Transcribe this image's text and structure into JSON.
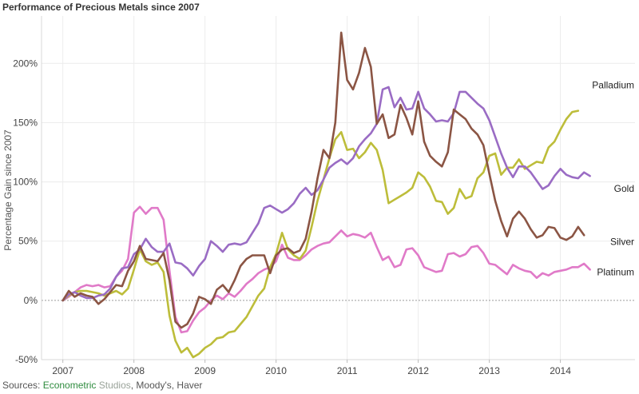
{
  "title": "Performance of Precious Metals since 2007",
  "sources": {
    "prefix": "Sources: ",
    "part1": "Econometric",
    "part2": " Studios",
    "part3": ", Moody's, Haver"
  },
  "chart_data": {
    "type": "line",
    "title": "Performance of Precious Metals since 2007",
    "ylabel": "Percentage Gain since 2007",
    "xlabel": "",
    "xlim": [
      2006.7,
      2015.05
    ],
    "ylim": [
      -50,
      240
    ],
    "x_ticks": [
      2007,
      2008,
      2009,
      2010,
      2011,
      2012,
      2013,
      2014
    ],
    "x_tick_labels": [
      "2007",
      "2008",
      "2009",
      "2010",
      "2011",
      "2012",
      "2013",
      "2014"
    ],
    "y_ticks": [
      -50,
      0,
      50,
      100,
      150,
      200
    ],
    "y_tick_labels": [
      "-50%",
      "0%",
      "50%",
      "100%",
      "150%",
      "200%"
    ],
    "grid": true,
    "zero_line": "dotted",
    "x_start": 2007.0,
    "x_step": 0.0833333,
    "series": [
      {
        "name": "Palladium",
        "color": "#bdbd3a",
        "values": [
          0,
          4,
          7,
          8,
          8,
          7,
          6,
          4,
          6,
          8,
          5,
          10,
          26,
          43,
          33,
          30,
          32,
          24,
          -13,
          -34,
          -44,
          -40,
          -48,
          -45,
          -40,
          -37,
          -32,
          -31,
          -27,
          -26,
          -20,
          -14,
          -5,
          4,
          10,
          28,
          39,
          57,
          43,
          38,
          35,
          42,
          62,
          84,
          102,
          120,
          136,
          142,
          127,
          128,
          120,
          125,
          133,
          127,
          110,
          82,
          85,
          88,
          91,
          95,
          108,
          104,
          96,
          84,
          83,
          73,
          78,
          94,
          86,
          88,
          103,
          108,
          122,
          124,
          106,
          112,
          112,
          119,
          111,
          114,
          117,
          116,
          129,
          134,
          144,
          153,
          159,
          160
        ]
      },
      {
        "name": "Gold",
        "color": "#9a6cc4",
        "values": [
          0,
          5,
          7,
          4,
          2,
          2,
          4,
          5,
          10,
          20,
          27,
          28,
          39,
          43,
          52,
          45,
          41,
          41,
          48,
          32,
          31,
          27,
          21,
          29,
          35,
          50,
          46,
          41,
          47,
          48,
          47,
          49,
          57,
          65,
          78,
          80,
          77,
          74,
          77,
          82,
          90,
          95,
          89,
          93,
          102,
          112,
          116,
          119,
          115,
          120,
          130,
          136,
          141,
          149,
          178,
          180,
          163,
          171,
          161,
          162,
          176,
          162,
          157,
          151,
          152,
          151,
          158,
          176,
          176,
          171,
          166,
          162,
          152,
          138,
          124,
          112,
          104,
          113,
          113,
          108,
          101,
          94,
          97,
          105,
          111,
          106,
          104,
          103,
          108,
          105
        ]
      },
      {
        "name": "Silver",
        "color": "#8b5544",
        "values": [
          0,
          8,
          3,
          6,
          4,
          3,
          -3,
          1,
          7,
          13,
          12,
          25,
          33,
          46,
          35,
          34,
          33,
          40,
          17,
          -18,
          -23,
          -20,
          -11,
          3,
          1,
          -3,
          9,
          13,
          7,
          17,
          29,
          35,
          38,
          38,
          38,
          23,
          38,
          43,
          44,
          40,
          42,
          52,
          75,
          103,
          127,
          120,
          150,
          226,
          186,
          178,
          192,
          213,
          197,
          149,
          157,
          137,
          140,
          165,
          154,
          140,
          168,
          134,
          122,
          117,
          113,
          125,
          161,
          157,
          153,
          145,
          140,
          131,
          107,
          84,
          67,
          54,
          69,
          75,
          69,
          60,
          53,
          55,
          62,
          61,
          53,
          51,
          54,
          62,
          55
        ]
      },
      {
        "name": "Platinum",
        "color": "#e07ac8",
        "values": [
          0,
          3,
          7,
          11,
          13,
          12,
          13,
          11,
          12,
          20,
          25,
          35,
          74,
          79,
          73,
          78,
          78,
          68,
          25,
          -14,
          -27,
          -26,
          -17,
          -10,
          -6,
          0,
          4,
          1,
          6,
          3,
          8,
          14,
          18,
          23,
          26,
          28,
          33,
          47,
          36,
          34,
          34,
          38,
          43,
          46,
          48,
          49,
          54,
          59,
          54,
          56,
          55,
          53,
          57,
          45,
          34,
          37,
          28,
          30,
          43,
          44,
          38,
          28,
          26,
          24,
          25,
          39,
          40,
          37,
          39,
          45,
          46,
          40,
          31,
          30,
          26,
          22,
          30,
          27,
          25,
          24,
          19,
          23,
          21,
          24,
          25,
          26,
          28,
          28,
          31,
          26
        ]
      }
    ],
    "end_labels": [
      {
        "series": "Palladium",
        "text": "Palladium"
      },
      {
        "series": "Gold",
        "text": "Gold"
      },
      {
        "series": "Silver",
        "text": "Silver"
      },
      {
        "series": "Platinum",
        "text": "Platinum"
      }
    ]
  }
}
